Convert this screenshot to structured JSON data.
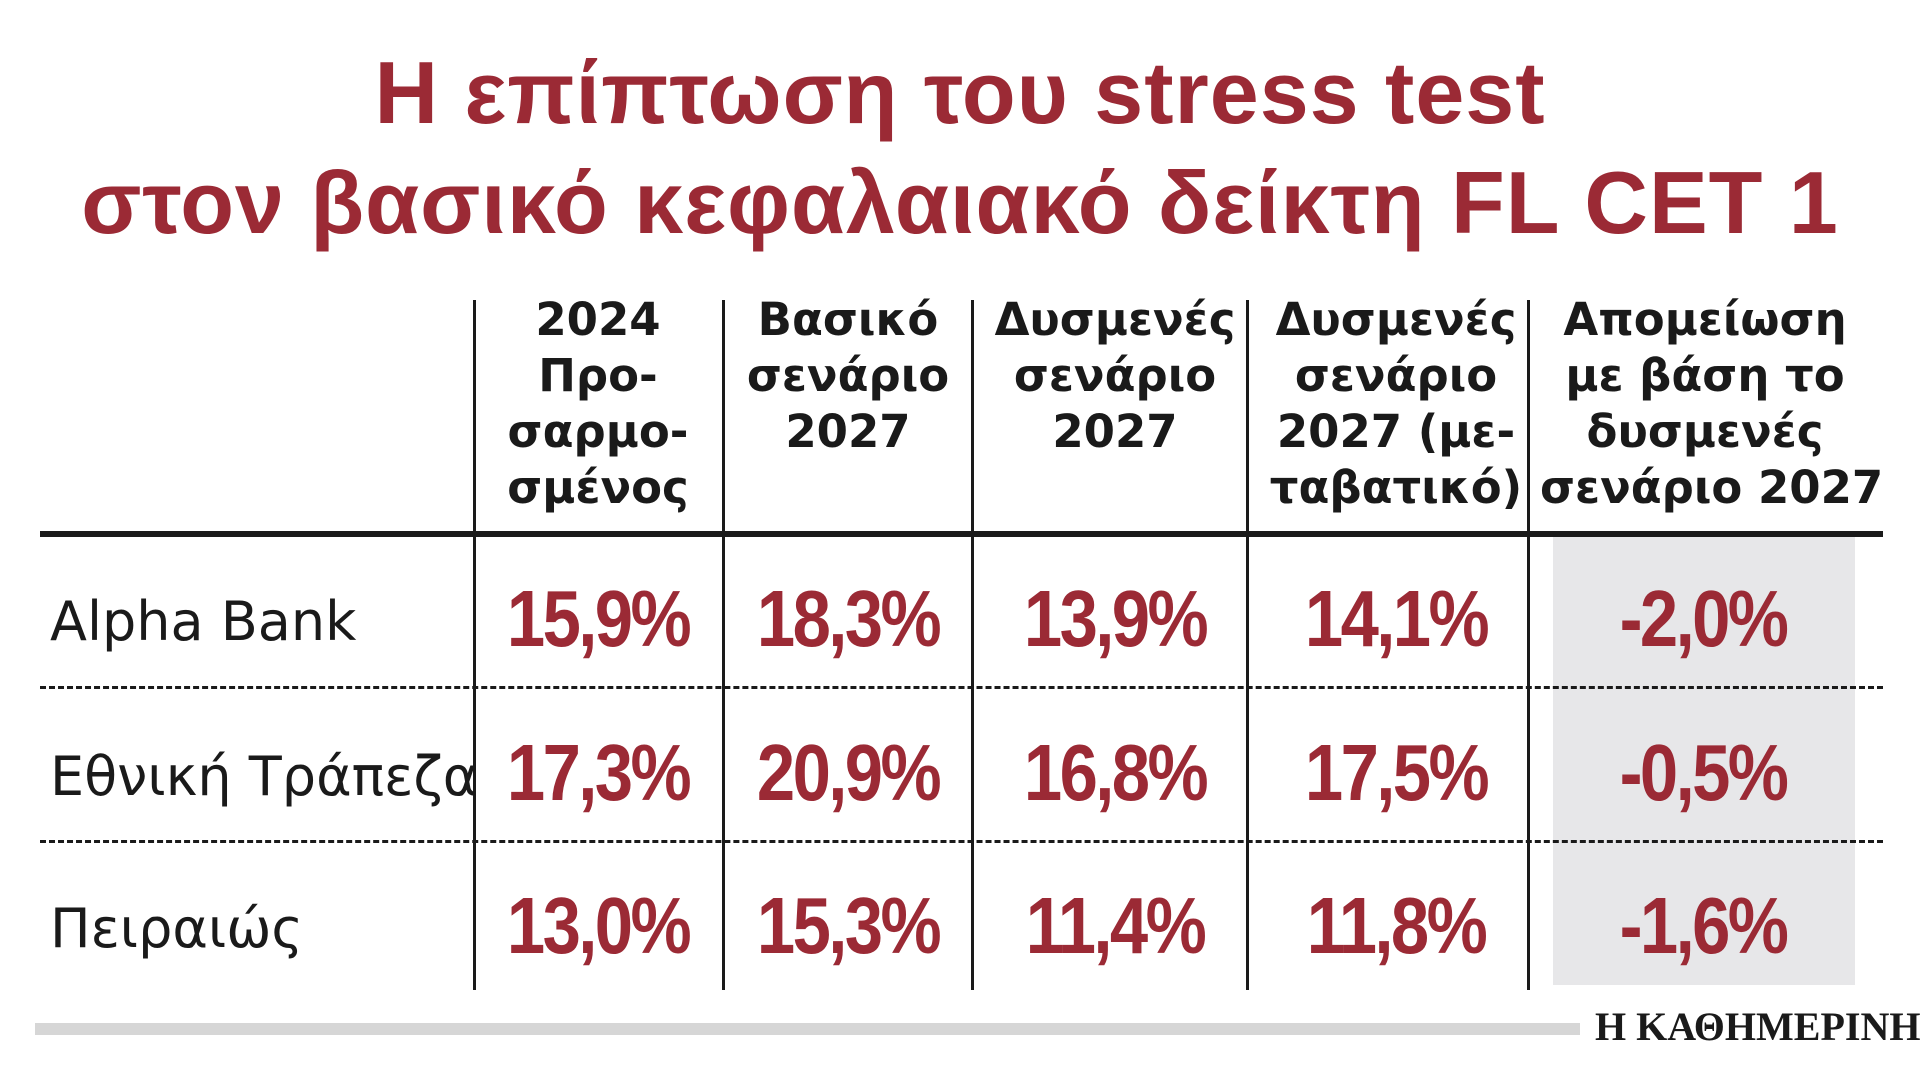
{
  "chart_data": {
    "type": "table",
    "title_lines": [
      "Η επίπτωση του stress test",
      "στον βασικό κεφαλαιακό δείκτη FL CET 1"
    ],
    "columns": [
      {
        "lines": [
          "2024",
          "Προ-",
          "σαρμο-",
          "σμένος"
        ]
      },
      {
        "lines": [
          "Βασικό",
          "σενάριο",
          "2027"
        ]
      },
      {
        "lines": [
          "Δυσμενές",
          "σενάριο",
          "2027"
        ]
      },
      {
        "lines": [
          "Δυσμενές",
          "σενάριο",
          "2027 (με-",
          "ταβατικό)"
        ]
      },
      {
        "lines": [
          "Απομείωση",
          "με βάση το",
          "δυσμενές",
          "σενάριο 2027"
        ]
      }
    ],
    "rows": [
      {
        "bank": "Alpha Bank",
        "values": [
          "15,9%",
          "18,3%",
          "13,9%",
          "14,1%",
          "-2,0%"
        ]
      },
      {
        "bank": "Εθνική Τράπεζα",
        "values": [
          "17,3%",
          "20,9%",
          "16,8%",
          "17,5%",
          "-0,5%"
        ]
      },
      {
        "bank": "Πειραιώς",
        "values": [
          "13,0%",
          "15,3%",
          "11,4%",
          "11,8%",
          "-1,6%"
        ]
      }
    ],
    "highlight_column": 4
  },
  "colors": {
    "accent": "#9b2a35",
    "shade": "#e7e7e9",
    "text": "#1a1a1a"
  },
  "brand": "Η ΚΑΘΗΜΕΡΙΝΗ"
}
